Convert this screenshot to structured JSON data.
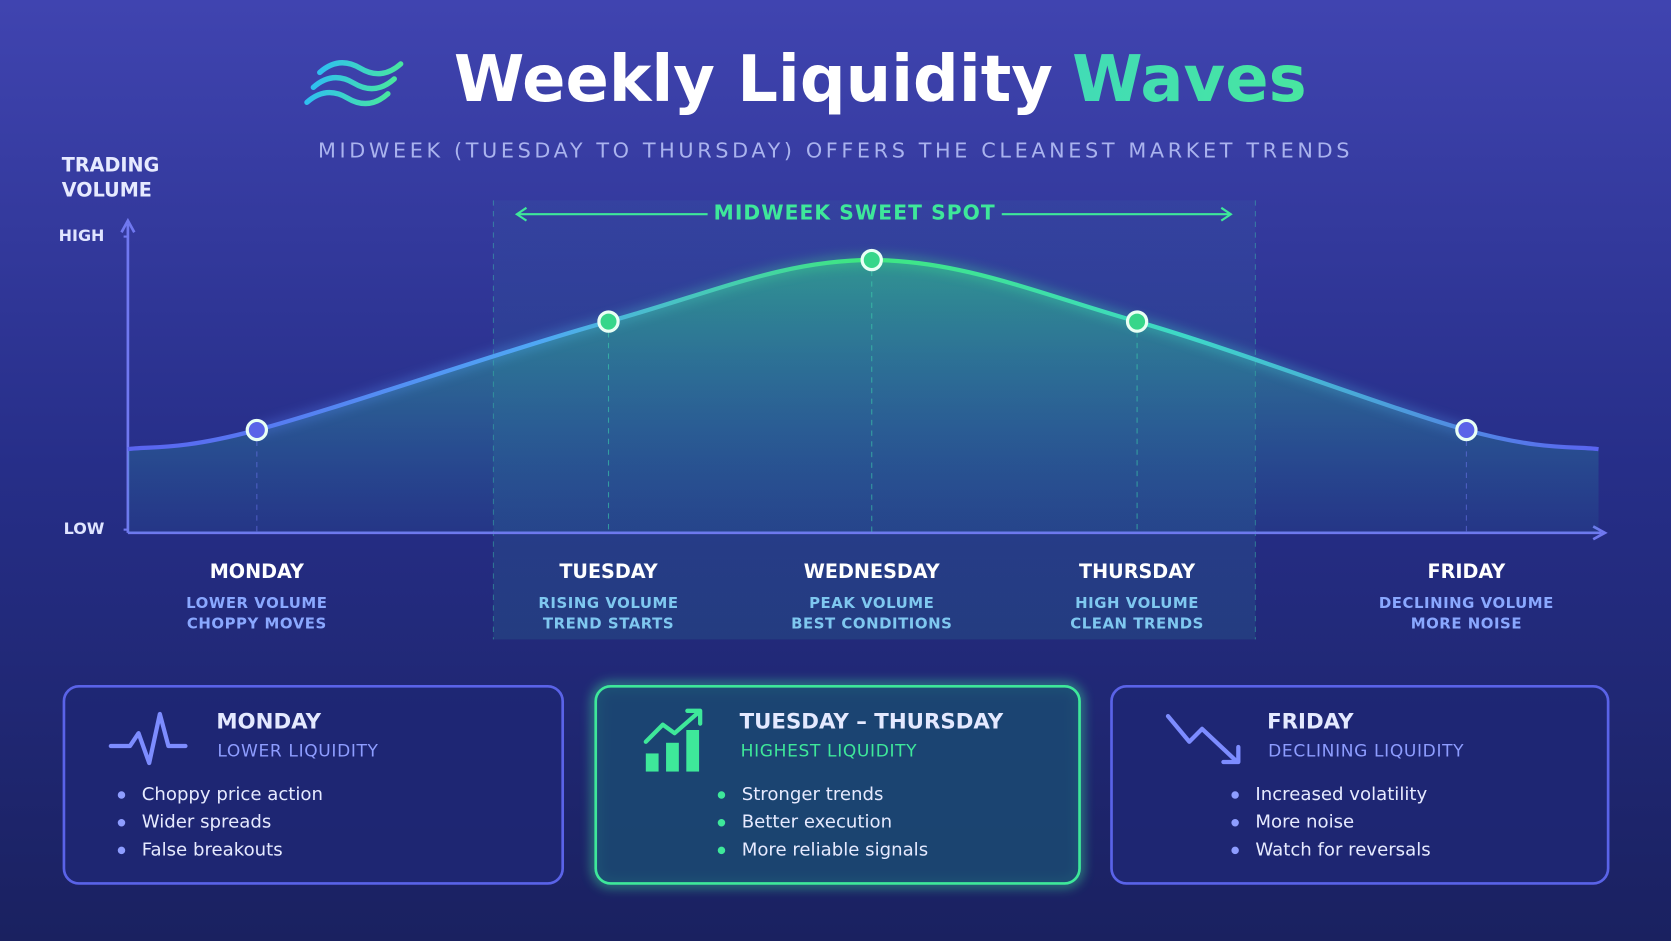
{
  "chart_data": {
    "type": "line",
    "title": "Weekly Liquidity",
    "title_highlight": "Waves",
    "subtitle": "MIDWEEK (TUESDAY TO THURSDAY) OFFERS THE CLEANEST MARKET TRENDS",
    "ylabel": [
      "TRADING",
      "VOLUME"
    ],
    "ylim": [
      0,
      100
    ],
    "yticks": [
      {
        "value": 0,
        "label": "LOW"
      },
      {
        "value": 100,
        "label": "HIGH"
      }
    ],
    "annotation": "MIDWEEK SWEET SPOT",
    "categories": [
      "MONDAY",
      "TUESDAY",
      "WEDNESDAY",
      "THURSDAY",
      "FRIDAY"
    ],
    "descriptions": [
      [
        "LOWER VOLUME",
        "CHOPPY MOVES"
      ],
      [
        "RISING VOLUME",
        "TREND STARTS"
      ],
      [
        "PEAK VOLUME",
        "BEST CONDITIONS"
      ],
      [
        "HIGH VOLUME",
        "CLEAN TRENDS"
      ],
      [
        "DECLINING VOLUME",
        "MORE NOISE"
      ]
    ],
    "series": [
      {
        "name": "Trading volume",
        "color": "#3ee89a",
        "values": [
          34,
          71,
          92,
          71,
          34
        ]
      }
    ]
  },
  "cards": [
    {
      "title": "MONDAY",
      "subtitle": "LOWER LIQUIDITY",
      "bullets": [
        "Choppy price action",
        "Wider spreads",
        "False breakouts"
      ]
    },
    {
      "title": "TUESDAY – THURSDAY",
      "subtitle": "HIGHEST LIQUIDITY",
      "bullets": [
        "Stronger trends",
        "Better execution",
        "More reliable signals"
      ]
    },
    {
      "title": "FRIDAY",
      "subtitle": "DECLINING LIQUIDITY",
      "bullets": [
        "Increased volatility",
        "More noise",
        "Watch for reversals"
      ]
    }
  ]
}
